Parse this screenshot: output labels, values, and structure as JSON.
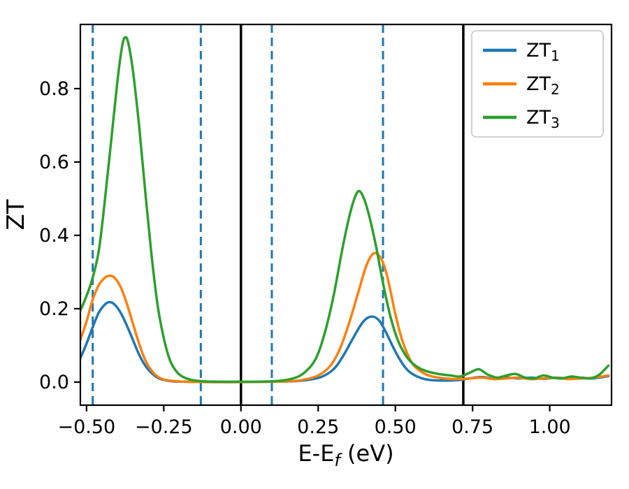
{
  "chart_data": {
    "type": "line",
    "title": "",
    "xlabel_parts": {
      "pre": "E-E",
      "sub": "f",
      "post": " (eV)"
    },
    "ylabel": "ZT",
    "xlim": [
      -0.52,
      1.2
    ],
    "ylim": [
      -0.063,
      0.975
    ],
    "xticks": [
      -0.5,
      -0.25,
      0.0,
      0.25,
      0.5,
      0.75,
      1.0
    ],
    "xtick_labels": [
      "−0.50",
      "−0.25",
      "0.00",
      "0.25",
      "0.50",
      "0.75",
      "1.00"
    ],
    "yticks": [
      0.0,
      0.2,
      0.4,
      0.6,
      0.8
    ],
    "ytick_labels": [
      "0.0",
      "0.2",
      "0.4",
      "0.6",
      "0.8"
    ],
    "grid": false,
    "legend_position": "upper right",
    "axis_color": "#000000",
    "vlines_solid": {
      "color": "#000000",
      "x": [
        0.0,
        0.72
      ]
    },
    "vlines_dashed": {
      "color": "#1f77b4",
      "x": [
        -0.48,
        -0.13,
        0.1,
        0.46
      ]
    },
    "series": [
      {
        "name": "ZT1",
        "label_base": "ZT",
        "label_sub": "1",
        "color": "#1f77b4",
        "points": [
          [
            -0.52,
            0.065
          ],
          [
            -0.5,
            0.105
          ],
          [
            -0.48,
            0.15
          ],
          [
            -0.46,
            0.19
          ],
          [
            -0.44,
            0.212
          ],
          [
            -0.425,
            0.218
          ],
          [
            -0.41,
            0.212
          ],
          [
            -0.39,
            0.19
          ],
          [
            -0.37,
            0.155
          ],
          [
            -0.35,
            0.115
          ],
          [
            -0.33,
            0.075
          ],
          [
            -0.31,
            0.045
          ],
          [
            -0.29,
            0.025
          ],
          [
            -0.27,
            0.012
          ],
          [
            -0.25,
            0.006
          ],
          [
            -0.22,
            0.002
          ],
          [
            -0.18,
            0.001
          ],
          [
            -0.1,
            0.0
          ],
          [
            0.0,
            0.0
          ],
          [
            0.1,
            0.001
          ],
          [
            0.16,
            0.002
          ],
          [
            0.21,
            0.005
          ],
          [
            0.26,
            0.014
          ],
          [
            0.3,
            0.035
          ],
          [
            0.33,
            0.07
          ],
          [
            0.36,
            0.115
          ],
          [
            0.39,
            0.158
          ],
          [
            0.41,
            0.175
          ],
          [
            0.43,
            0.178
          ],
          [
            0.45,
            0.165
          ],
          [
            0.47,
            0.135
          ],
          [
            0.49,
            0.1
          ],
          [
            0.51,
            0.068
          ],
          [
            0.53,
            0.042
          ],
          [
            0.55,
            0.025
          ],
          [
            0.58,
            0.012
          ],
          [
            0.61,
            0.006
          ],
          [
            0.65,
            0.004
          ],
          [
            0.7,
            0.005
          ],
          [
            0.74,
            0.01
          ],
          [
            0.78,
            0.014
          ],
          [
            0.82,
            0.009
          ],
          [
            0.86,
            0.012
          ],
          [
            0.9,
            0.01
          ],
          [
            0.94,
            0.012
          ],
          [
            0.98,
            0.009
          ],
          [
            1.02,
            0.012
          ],
          [
            1.06,
            0.01
          ],
          [
            1.1,
            0.012
          ],
          [
            1.14,
            0.01
          ],
          [
            1.19,
            0.016
          ]
        ]
      },
      {
        "name": "ZT2",
        "label_base": "ZT",
        "label_sub": "2",
        "color": "#ff7f0e",
        "points": [
          [
            -0.52,
            0.115
          ],
          [
            -0.5,
            0.165
          ],
          [
            -0.48,
            0.225
          ],
          [
            -0.46,
            0.265
          ],
          [
            -0.44,
            0.285
          ],
          [
            -0.425,
            0.29
          ],
          [
            -0.41,
            0.285
          ],
          [
            -0.39,
            0.26
          ],
          [
            -0.37,
            0.215
          ],
          [
            -0.35,
            0.16
          ],
          [
            -0.33,
            0.105
          ],
          [
            -0.31,
            0.06
          ],
          [
            -0.29,
            0.032
          ],
          [
            -0.27,
            0.015
          ],
          [
            -0.25,
            0.007
          ],
          [
            -0.22,
            0.003
          ],
          [
            -0.18,
            0.001
          ],
          [
            -0.1,
            0.0
          ],
          [
            0.0,
            0.0
          ],
          [
            0.1,
            0.001
          ],
          [
            0.15,
            0.002
          ],
          [
            0.2,
            0.006
          ],
          [
            0.25,
            0.018
          ],
          [
            0.29,
            0.045
          ],
          [
            0.32,
            0.09
          ],
          [
            0.35,
            0.16
          ],
          [
            0.38,
            0.245
          ],
          [
            0.405,
            0.315
          ],
          [
            0.425,
            0.348
          ],
          [
            0.44,
            0.35
          ],
          [
            0.455,
            0.335
          ],
          [
            0.47,
            0.3
          ],
          [
            0.485,
            0.245
          ],
          [
            0.5,
            0.185
          ],
          [
            0.52,
            0.12
          ],
          [
            0.54,
            0.075
          ],
          [
            0.56,
            0.045
          ],
          [
            0.59,
            0.025
          ],
          [
            0.62,
            0.015
          ],
          [
            0.66,
            0.01
          ],
          [
            0.7,
            0.008
          ],
          [
            0.74,
            0.01
          ],
          [
            0.78,
            0.012
          ],
          [
            0.82,
            0.008
          ],
          [
            0.86,
            0.01
          ],
          [
            0.9,
            0.012
          ],
          [
            0.94,
            0.008
          ],
          [
            0.98,
            0.01
          ],
          [
            1.02,
            0.012
          ],
          [
            1.06,
            0.008
          ],
          [
            1.1,
            0.01
          ],
          [
            1.14,
            0.012
          ],
          [
            1.19,
            0.018
          ]
        ]
      },
      {
        "name": "ZT3",
        "label_base": "ZT",
        "label_sub": "3",
        "color": "#2ca02c",
        "points": [
          [
            -0.52,
            0.195
          ],
          [
            -0.5,
            0.235
          ],
          [
            -0.48,
            0.285
          ],
          [
            -0.46,
            0.36
          ],
          [
            -0.44,
            0.5
          ],
          [
            -0.42,
            0.66
          ],
          [
            -0.4,
            0.82
          ],
          [
            -0.385,
            0.915
          ],
          [
            -0.375,
            0.94
          ],
          [
            -0.365,
            0.925
          ],
          [
            -0.35,
            0.85
          ],
          [
            -0.33,
            0.7
          ],
          [
            -0.31,
            0.52
          ],
          [
            -0.29,
            0.35
          ],
          [
            -0.27,
            0.21
          ],
          [
            -0.25,
            0.12
          ],
          [
            -0.23,
            0.06
          ],
          [
            -0.21,
            0.03
          ],
          [
            -0.19,
            0.015
          ],
          [
            -0.16,
            0.006
          ],
          [
            -0.12,
            0.002
          ],
          [
            -0.06,
            0.001
          ],
          [
            0.0,
            0.001
          ],
          [
            0.06,
            0.001
          ],
          [
            0.12,
            0.003
          ],
          [
            0.16,
            0.008
          ],
          [
            0.2,
            0.022
          ],
          [
            0.24,
            0.06
          ],
          [
            0.27,
            0.13
          ],
          [
            0.3,
            0.235
          ],
          [
            0.33,
            0.37
          ],
          [
            0.355,
            0.465
          ],
          [
            0.375,
            0.515
          ],
          [
            0.39,
            0.515
          ],
          [
            0.41,
            0.47
          ],
          [
            0.435,
            0.38
          ],
          [
            0.46,
            0.27
          ],
          [
            0.485,
            0.175
          ],
          [
            0.51,
            0.11
          ],
          [
            0.54,
            0.065
          ],
          [
            0.57,
            0.042
          ],
          [
            0.6,
            0.03
          ],
          [
            0.64,
            0.022
          ],
          [
            0.68,
            0.018
          ],
          [
            0.71,
            0.015
          ],
          [
            0.74,
            0.025
          ],
          [
            0.77,
            0.035
          ],
          [
            0.8,
            0.02
          ],
          [
            0.83,
            0.012
          ],
          [
            0.86,
            0.018
          ],
          [
            0.89,
            0.022
          ],
          [
            0.92,
            0.012
          ],
          [
            0.95,
            0.01
          ],
          [
            0.98,
            0.018
          ],
          [
            1.01,
            0.012
          ],
          [
            1.04,
            0.01
          ],
          [
            1.07,
            0.015
          ],
          [
            1.1,
            0.012
          ],
          [
            1.13,
            0.01
          ],
          [
            1.16,
            0.02
          ],
          [
            1.19,
            0.045
          ]
        ]
      }
    ],
    "legend": {
      "border_color": "#cccccc",
      "background": "#ffffff"
    }
  }
}
